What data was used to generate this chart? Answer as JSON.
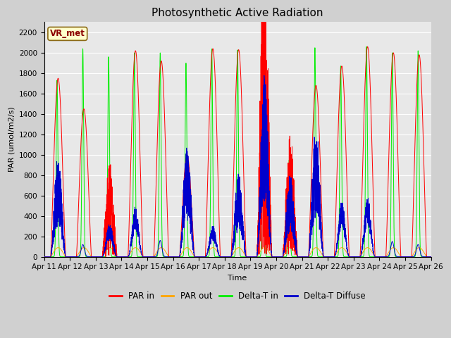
{
  "title": "Photosynthetic Active Radiation",
  "ylabel": "PAR (umol/m2/s)",
  "xlabel": "Time",
  "station_label": "VR_met",
  "ylim": [
    0,
    2300
  ],
  "yticks": [
    0,
    200,
    400,
    600,
    800,
    1000,
    1200,
    1400,
    1600,
    1800,
    2000,
    2200
  ],
  "xtick_labels": [
    "Apr 11",
    "Apr 12",
    "Apr 13",
    "Apr 14",
    "Apr 15",
    "Apr 16",
    "Apr 17",
    "Apr 18",
    "Apr 19",
    "Apr 20",
    "Apr 21",
    "Apr 22",
    "Apr 23",
    "Apr 24",
    "Apr 25",
    "Apr 26"
  ],
  "colors": {
    "PAR_in": "#ff0000",
    "PAR_out": "#ffa500",
    "Delta_T_in": "#00ee00",
    "Delta_T_Diffuse": "#0000cc"
  },
  "legend_labels": [
    "PAR in",
    "PAR out",
    "Delta-T in",
    "Delta-T Diffuse"
  ],
  "fig_facecolor": "#d0d0d0",
  "axes_facecolor": "#e8e8e8",
  "grid_color": "#ffffff",
  "title_fontsize": 11,
  "label_fontsize": 8,
  "tick_fontsize": 7.5
}
